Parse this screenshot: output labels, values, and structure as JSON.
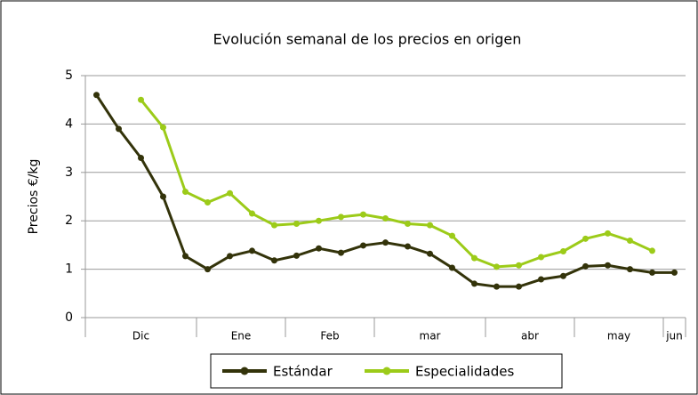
{
  "chart_data": {
    "type": "line",
    "title": "Evolución semanal de los precios en origen",
    "y_label": "Precios €/kg",
    "groups": [
      {
        "label": "Dic",
        "count": 5
      },
      {
        "label": "Ene",
        "count": 4
      },
      {
        "label": "Feb",
        "count": 4
      },
      {
        "label": "mar",
        "count": 5
      },
      {
        "label": "abr",
        "count": 4
      },
      {
        "label": "may",
        "count": 4
      },
      {
        "label": "jun",
        "count": 1
      }
    ],
    "series": [
      {
        "name": "Estándar",
        "color": "#33330a",
        "values": [
          4.6,
          3.9,
          3.3,
          2.5,
          1.27,
          1.0,
          1.27,
          1.38,
          1.18,
          1.28,
          1.43,
          1.34,
          1.49,
          1.55,
          1.47,
          1.32,
          1.03,
          0.7,
          0.64,
          0.64,
          0.79,
          0.86,
          1.06,
          1.08,
          1.0,
          0.93,
          0.93
        ]
      },
      {
        "name": "Especialidades",
        "color": "#9ccb19",
        "values": [
          null,
          null,
          4.5,
          3.93,
          2.6,
          2.38,
          2.57,
          2.15,
          1.91,
          1.94,
          2.0,
          2.08,
          2.13,
          2.05,
          1.94,
          1.91,
          1.69,
          1.23,
          1.05,
          1.08,
          1.25,
          1.37,
          1.63,
          1.74,
          1.59,
          1.38,
          null
        ]
      }
    ],
    "ylim": [
      0,
      5
    ],
    "yticks": [
      0,
      1,
      2,
      3,
      4,
      5
    ],
    "grid": true,
    "legend": "bottom"
  }
}
